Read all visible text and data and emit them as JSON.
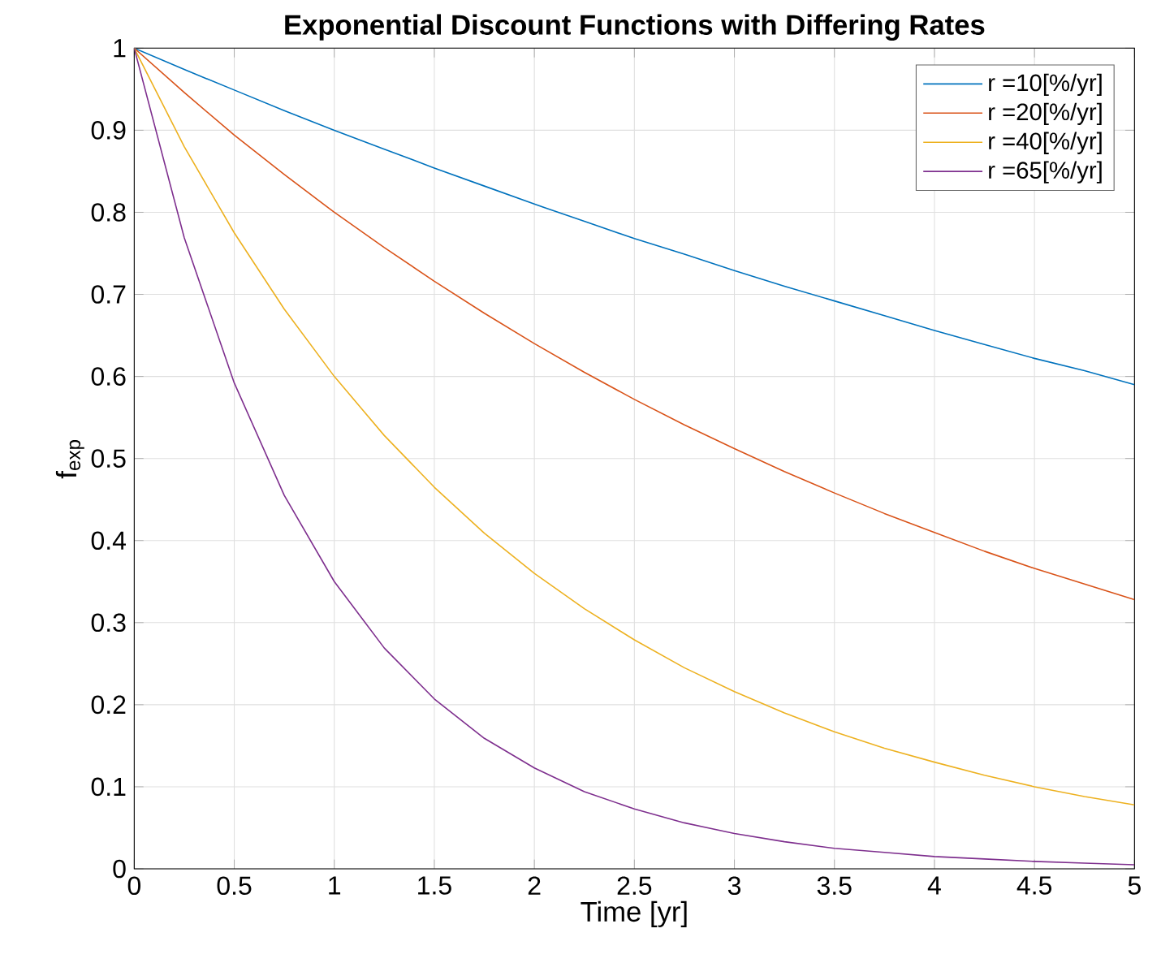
{
  "chart_data": {
    "type": "line",
    "title": "Exponential Discount Functions with Differing Rates",
    "xlabel": "Time [yr]",
    "ylabel": "f$_{exp}$",
    "x": [
      0,
      0.25,
      0.5,
      0.75,
      1,
      1.25,
      1.5,
      1.75,
      2,
      2.25,
      2.5,
      2.75,
      3,
      3.25,
      3.5,
      3.75,
      4,
      4.25,
      4.5,
      4.75,
      5
    ],
    "series": [
      {
        "name": "r =10[%/yr]",
        "color": "#0072bd",
        "values": [
          1,
          0.974,
          0.949,
          0.924,
          0.9,
          0.877,
          0.854,
          0.832,
          0.81,
          0.789,
          0.768,
          0.749,
          0.729,
          0.71,
          0.692,
          0.674,
          0.656,
          0.639,
          0.622,
          0.607,
          0.59
        ]
      },
      {
        "name": "r =20[%/yr]",
        "color": "#d95319",
        "values": [
          1,
          0.946,
          0.894,
          0.846,
          0.8,
          0.757,
          0.716,
          0.677,
          0.64,
          0.605,
          0.572,
          0.541,
          0.512,
          0.484,
          0.458,
          0.433,
          0.41,
          0.387,
          0.366,
          0.347,
          0.328
        ]
      },
      {
        "name": "r =40[%/yr]",
        "color": "#edb120",
        "values": [
          1,
          0.88,
          0.775,
          0.682,
          0.6,
          0.528,
          0.465,
          0.409,
          0.36,
          0.317,
          0.279,
          0.245,
          0.216,
          0.19,
          0.167,
          0.147,
          0.13,
          0.114,
          0.1,
          0.088,
          0.078
        ]
      },
      {
        "name": "r =65[%/yr]",
        "color": "#7e2f8e",
        "values": [
          1,
          0.769,
          0.592,
          0.455,
          0.35,
          0.269,
          0.207,
          0.159,
          0.123,
          0.094,
          0.073,
          0.056,
          0.043,
          0.033,
          0.025,
          0.02,
          0.015,
          0.012,
          0.009,
          0.007,
          0.005
        ]
      }
    ],
    "xlim": [
      0,
      5
    ],
    "ylim": [
      0,
      1
    ],
    "xticks": [
      0,
      0.5,
      1,
      1.5,
      2,
      2.5,
      3,
      3.5,
      4,
      4.5,
      5
    ],
    "yticks": [
      0,
      0.1,
      0.2,
      0.3,
      0.4,
      0.5,
      0.6,
      0.7,
      0.8,
      0.9,
      1
    ],
    "grid": true,
    "legend": "top right",
    "marker": "none",
    "line_style": "solid"
  }
}
